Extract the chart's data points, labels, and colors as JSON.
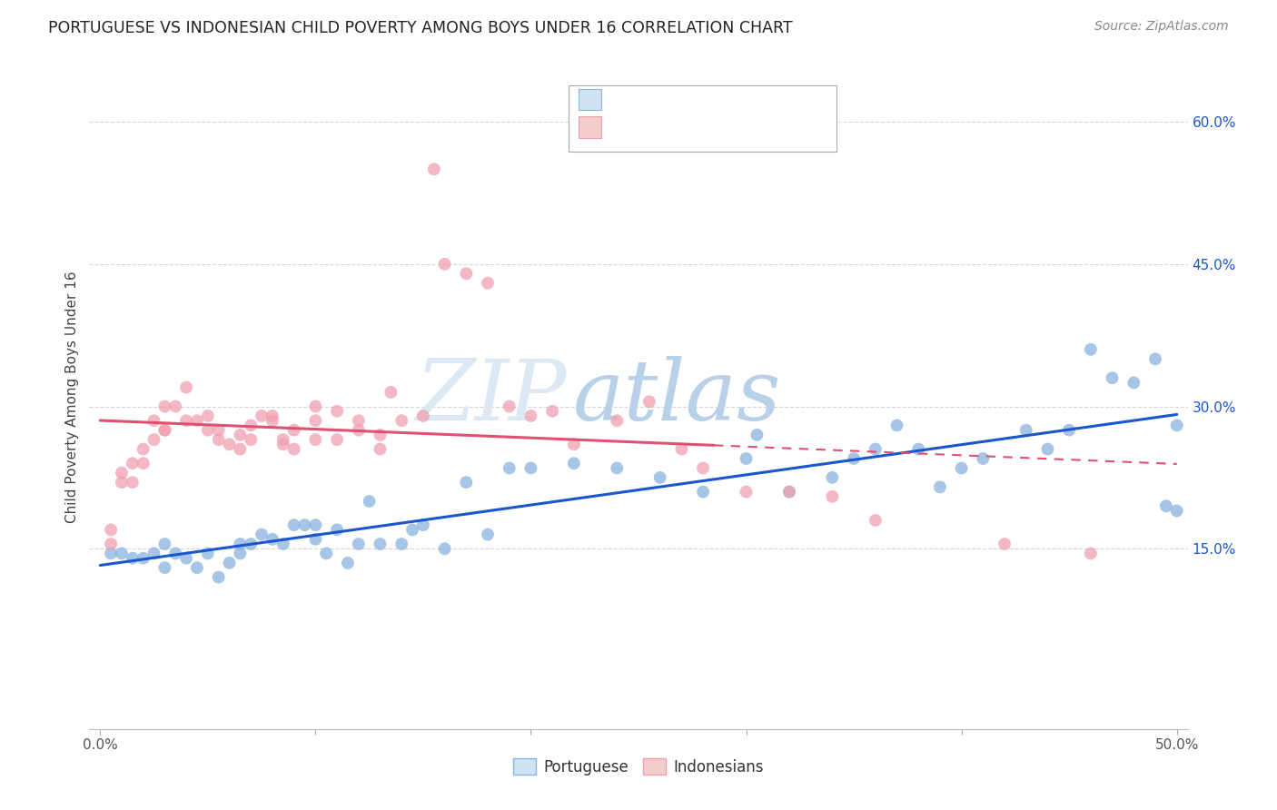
{
  "title": "PORTUGUESE VS INDONESIAN CHILD POVERTY AMONG BOYS UNDER 16 CORRELATION CHART",
  "source": "Source: ZipAtlas.com",
  "ylabel": "Child Poverty Among Boys Under 16",
  "xlim": [
    -0.005,
    0.505
  ],
  "ylim": [
    -0.04,
    0.66
  ],
  "xtick_pos": [
    0.0,
    0.1,
    0.2,
    0.3,
    0.4,
    0.5
  ],
  "xticklabels": [
    "0.0%",
    "",
    "",
    "",
    "",
    "50.0%"
  ],
  "ytick_vals": [
    0.15,
    0.3,
    0.45,
    0.6
  ],
  "ytick_labels": [
    "15.0%",
    "30.0%",
    "45.0%",
    "60.0%"
  ],
  "watermark_zip": "ZIP",
  "watermark_atlas": "atlas",
  "portuguese_color": "#8ab4e0",
  "indonesian_color": "#f0a0b0",
  "portuguese_color_light": "#cfe2f3",
  "indonesian_color_light": "#f4cccc",
  "line_portuguese": "#1a56cc",
  "line_indonesian": "#e05070",
  "background_color": "#ffffff",
  "grid_color": "#cccccc",
  "legend_r1_color": "#1a56cc",
  "legend_r2_color": "#e05070",
  "portuguese_scatter_x": [
    0.005,
    0.01,
    0.015,
    0.02,
    0.025,
    0.03,
    0.03,
    0.035,
    0.04,
    0.045,
    0.05,
    0.055,
    0.06,
    0.065,
    0.065,
    0.07,
    0.075,
    0.08,
    0.085,
    0.09,
    0.095,
    0.1,
    0.1,
    0.105,
    0.11,
    0.115,
    0.12,
    0.125,
    0.13,
    0.14,
    0.145,
    0.15,
    0.16,
    0.17,
    0.18,
    0.19,
    0.2,
    0.22,
    0.24,
    0.26,
    0.28,
    0.3,
    0.305,
    0.32,
    0.34,
    0.35,
    0.36,
    0.37,
    0.38,
    0.39,
    0.4,
    0.41,
    0.43,
    0.44,
    0.45,
    0.46,
    0.47,
    0.48,
    0.49,
    0.495,
    0.5,
    0.5
  ],
  "portuguese_scatter_y": [
    0.145,
    0.145,
    0.14,
    0.14,
    0.145,
    0.13,
    0.155,
    0.145,
    0.14,
    0.13,
    0.145,
    0.12,
    0.135,
    0.155,
    0.145,
    0.155,
    0.165,
    0.16,
    0.155,
    0.175,
    0.175,
    0.175,
    0.16,
    0.145,
    0.17,
    0.135,
    0.155,
    0.2,
    0.155,
    0.155,
    0.17,
    0.175,
    0.15,
    0.22,
    0.165,
    0.235,
    0.235,
    0.24,
    0.235,
    0.225,
    0.21,
    0.245,
    0.27,
    0.21,
    0.225,
    0.245,
    0.255,
    0.28,
    0.255,
    0.215,
    0.235,
    0.245,
    0.275,
    0.255,
    0.275,
    0.36,
    0.33,
    0.325,
    0.35,
    0.195,
    0.28,
    0.19
  ],
  "indonesian_scatter_x": [
    0.005,
    0.005,
    0.01,
    0.01,
    0.015,
    0.015,
    0.02,
    0.02,
    0.025,
    0.025,
    0.03,
    0.03,
    0.03,
    0.035,
    0.04,
    0.04,
    0.045,
    0.05,
    0.05,
    0.055,
    0.055,
    0.06,
    0.065,
    0.065,
    0.07,
    0.07,
    0.075,
    0.08,
    0.08,
    0.085,
    0.085,
    0.09,
    0.09,
    0.1,
    0.1,
    0.1,
    0.11,
    0.11,
    0.12,
    0.12,
    0.13,
    0.13,
    0.135,
    0.14,
    0.15,
    0.155,
    0.16,
    0.17,
    0.18,
    0.19,
    0.2,
    0.21,
    0.22,
    0.24,
    0.255,
    0.27,
    0.28,
    0.3,
    0.32,
    0.34,
    0.36,
    0.42,
    0.46
  ],
  "indonesian_scatter_y": [
    0.17,
    0.155,
    0.23,
    0.22,
    0.24,
    0.22,
    0.255,
    0.24,
    0.265,
    0.285,
    0.3,
    0.275,
    0.275,
    0.3,
    0.285,
    0.32,
    0.285,
    0.275,
    0.29,
    0.265,
    0.275,
    0.26,
    0.27,
    0.255,
    0.28,
    0.265,
    0.29,
    0.285,
    0.29,
    0.265,
    0.26,
    0.275,
    0.255,
    0.3,
    0.265,
    0.285,
    0.265,
    0.295,
    0.275,
    0.285,
    0.27,
    0.255,
    0.315,
    0.285,
    0.29,
    0.55,
    0.45,
    0.44,
    0.43,
    0.3,
    0.29,
    0.295,
    0.26,
    0.285,
    0.305,
    0.255,
    0.235,
    0.21,
    0.21,
    0.205,
    0.18,
    0.155,
    0.145
  ]
}
